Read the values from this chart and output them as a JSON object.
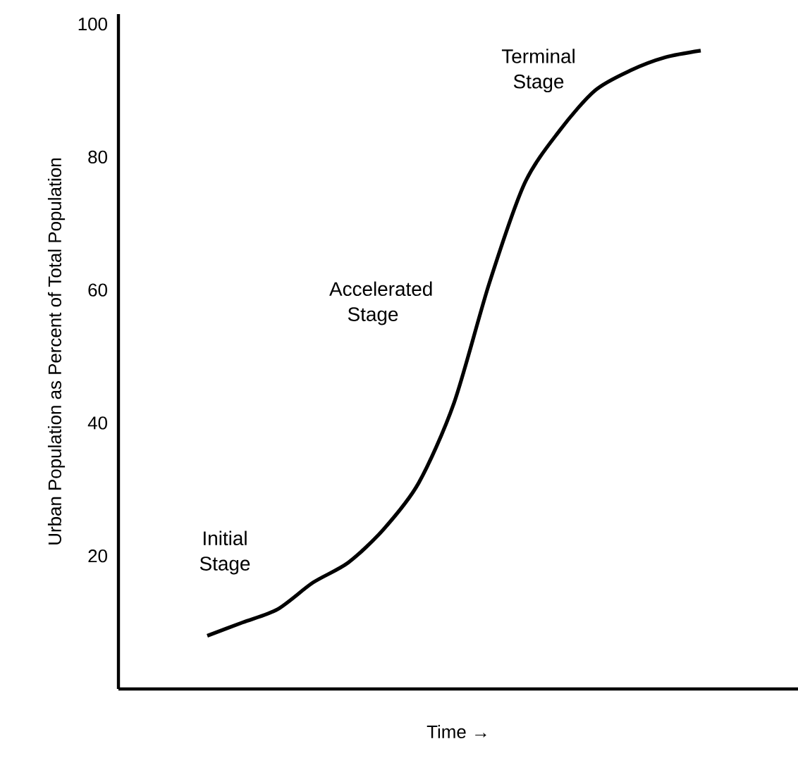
{
  "chart_data": {
    "type": "line",
    "xlabel": "Time →",
    "ylabel": "Urban Population as Percent of Total Population",
    "categories": [
      null,
      null,
      null,
      null,
      null,
      null,
      null,
      null,
      null,
      null,
      null,
      null,
      null,
      null,
      null
    ],
    "series": [
      {
        "color": "#000000",
        "values": [
          8,
          10,
          12,
          16,
          19,
          24,
          31,
          43,
          61,
          76,
          84,
          90,
          93,
          95,
          96
        ]
      }
    ],
    "ylim": [
      0,
      101.5
    ],
    "yticks": [
      20,
      40,
      60,
      80,
      100
    ],
    "tick_labels": "y",
    "grid": false,
    "marker": "none",
    "line_style": "solid",
    "annotations": [
      "Initial Stage",
      "Accelerated Stage",
      "Terminal Stage"
    ]
  }
}
